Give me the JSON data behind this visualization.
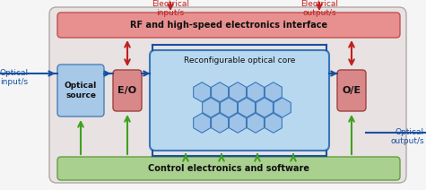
{
  "fig_width": 4.75,
  "fig_height": 2.12,
  "dpi": 100,
  "bg_outer": "#f5f5f5",
  "bg_inner": "#e8e2e2",
  "bg_inner_edge": "#b0a8a8",
  "rf_box_color": "#e89090",
  "rf_box_edge": "#c05050",
  "ctrl_box_color": "#aad090",
  "ctrl_box_edge": "#60a040",
  "optical_source_color": "#a8c8e8",
  "optical_source_edge": "#4880b8",
  "eo_box_color": "#d88888",
  "eo_box_edge": "#a04040",
  "oe_box_color": "#d88888",
  "oe_box_edge": "#a04040",
  "optical_core_bg": "#b8d8f0",
  "optical_core_edge": "#3878b8",
  "hex_fill": "#a0c4e8",
  "hex_edge": "#3878b8",
  "arrow_blue": "#1850a0",
  "arrow_red": "#c02020",
  "arrow_green": "#40a020",
  "text_dark": "#101010",
  "label_elec_in": "Electrical\ninput/s",
  "label_elec_out": "Electrical\noutput/s",
  "label_opt_in": "Optical\ninput/s",
  "label_opt_out": "Optical\noutput/s",
  "label_rf": "RF and high-speed electronics interface",
  "label_ctrl": "Control electronics and software",
  "label_core": "Reconfigurable optical core",
  "label_source": "Optical\nsource",
  "label_eo": "E/O",
  "label_oe": "O/E"
}
